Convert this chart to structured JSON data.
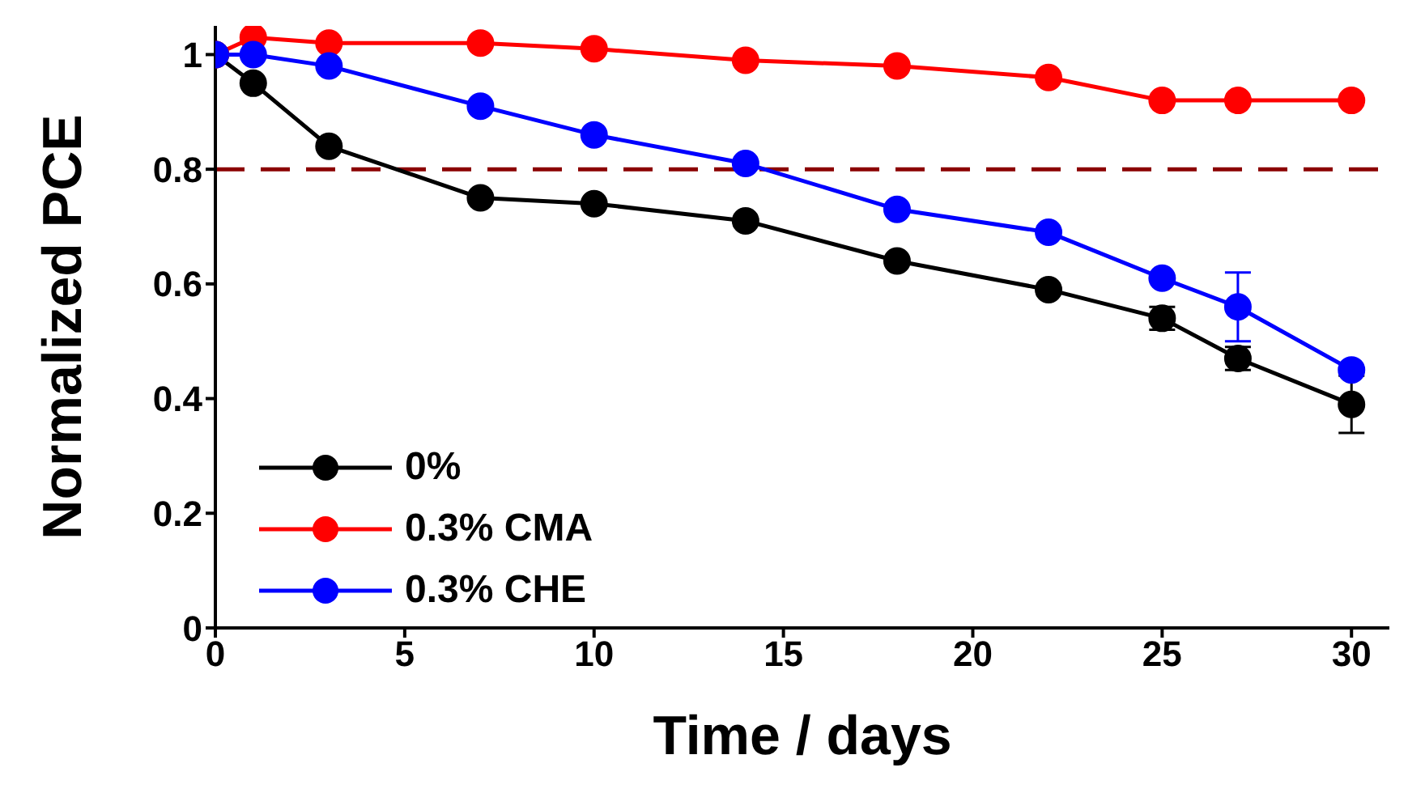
{
  "chart_data": {
    "type": "line",
    "xlabel": "Time / days",
    "ylabel": "Normalized PCE",
    "x": [
      0,
      1,
      3,
      7,
      10,
      14,
      18,
      22,
      25,
      27,
      30
    ],
    "series": [
      {
        "name": "0%",
        "color": "#000000",
        "values": [
          1.0,
          0.95,
          0.84,
          0.75,
          0.74,
          0.71,
          0.64,
          0.59,
          0.54,
          0.47,
          0.39
        ],
        "errors": [
          null,
          null,
          null,
          null,
          null,
          null,
          null,
          null,
          0.02,
          0.02,
          0.05
        ]
      },
      {
        "name": "0.3% CMA",
        "color": "#ff0000",
        "values": [
          1.0,
          1.03,
          1.02,
          1.02,
          1.01,
          0.99,
          0.98,
          0.96,
          0.92,
          0.92,
          0.92
        ]
      },
      {
        "name": "0.3% CHE",
        "color": "#0000ff",
        "values": [
          1.0,
          1.0,
          0.98,
          0.91,
          0.86,
          0.81,
          0.73,
          0.69,
          0.61,
          0.56,
          0.45
        ],
        "errors": [
          null,
          null,
          null,
          null,
          null,
          null,
          null,
          null,
          null,
          0.06,
          null
        ]
      }
    ],
    "xlim": [
      0,
      31
    ],
    "xticks": [
      0,
      5,
      10,
      15,
      20,
      25,
      30
    ],
    "ylim": [
      0,
      1.05
    ],
    "yticks": [
      0,
      0.2,
      0.4,
      0.6,
      0.8,
      1
    ],
    "ref_lines": [
      {
        "axis": "y",
        "value": 0.8,
        "color": "#8b0000",
        "line_style": "dashed"
      }
    ],
    "marker": "circle",
    "grid": false,
    "legend": "bottom left"
  }
}
